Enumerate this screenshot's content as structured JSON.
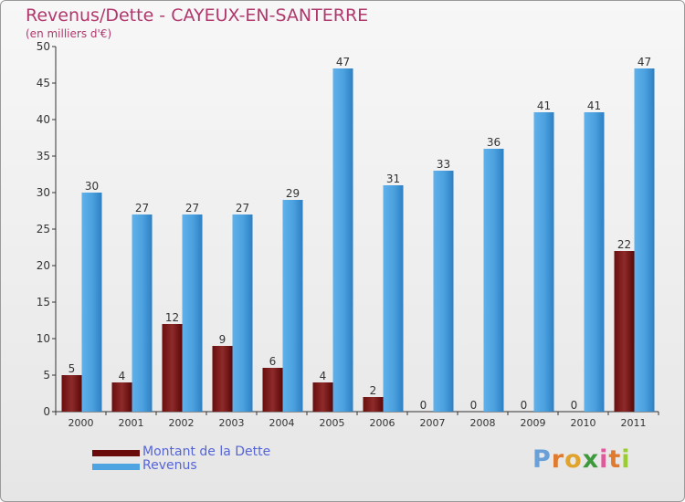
{
  "header": {
    "title": "Revenus/Dette - CAYEUX-EN-SANTERRE",
    "subtitle": "(en milliers d'€)"
  },
  "colors": {
    "dette": "#7a1616",
    "revenus": "#4ea4e0",
    "title": "#b0386c",
    "legend_text": "#5565d8"
  },
  "legend": {
    "dette_label": "Montant de la Dette",
    "revenus_label": "Revenus"
  },
  "logo": {
    "text": "Proxiti"
  },
  "chart_data": {
    "type": "bar",
    "categories": [
      "2000",
      "2001",
      "2002",
      "2003",
      "2004",
      "2005",
      "2006",
      "2007",
      "2008",
      "2009",
      "2010",
      "2011"
    ],
    "series": [
      {
        "name": "Montant de la Dette",
        "values": [
          5,
          4,
          12,
          9,
          6,
          4,
          2,
          0,
          0,
          0,
          0,
          22
        ]
      },
      {
        "name": "Revenus",
        "values": [
          30,
          27,
          27,
          27,
          29,
          47,
          31,
          33,
          36,
          41,
          41,
          47
        ]
      }
    ],
    "ylim": [
      0,
      50
    ],
    "yticks": [
      0,
      5,
      10,
      15,
      20,
      25,
      30,
      35,
      40,
      45,
      50
    ],
    "grid": false,
    "legend_position": "bottom-left"
  }
}
